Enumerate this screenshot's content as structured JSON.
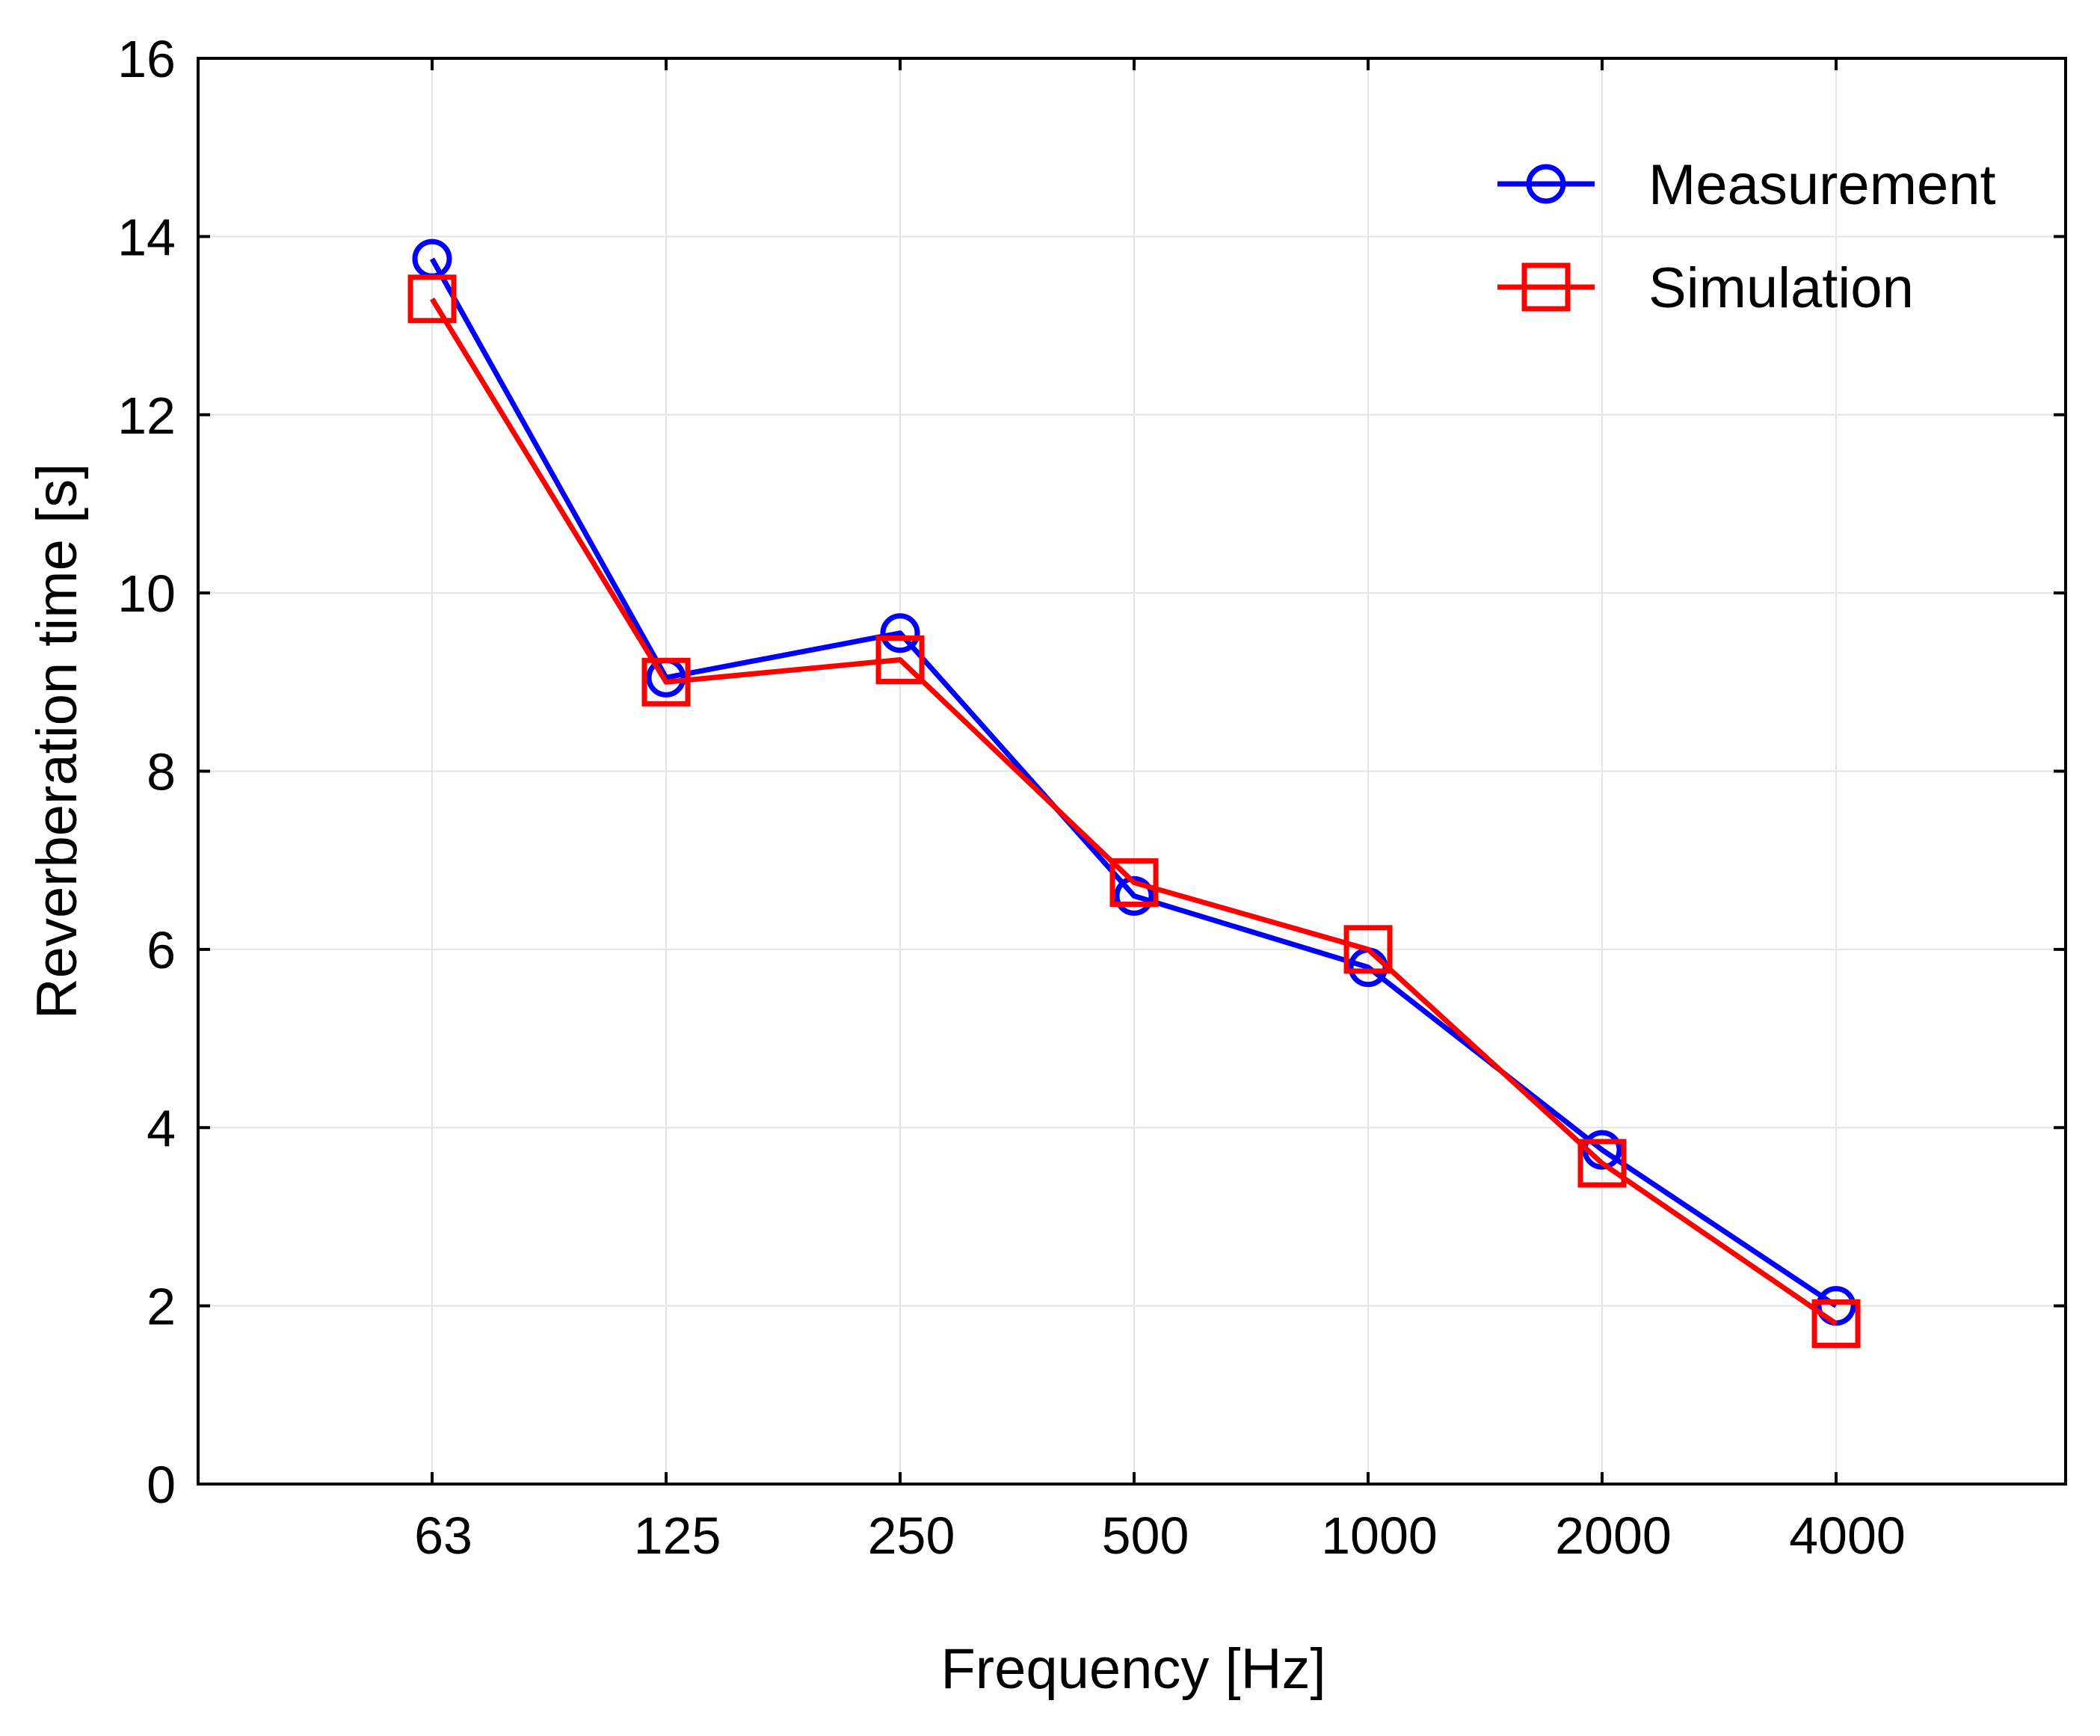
{
  "chart_data": {
    "type": "line",
    "title": "",
    "xlabel": "Frequency [Hz]",
    "ylabel": "Reverberation time [s]",
    "categories": [
      "63",
      "125",
      "250",
      "500",
      "1000",
      "2000",
      "4000"
    ],
    "ylim": [
      0,
      16
    ],
    "yticks": [
      "0",
      "2",
      "4",
      "6",
      "8",
      "10",
      "12",
      "14",
      "16"
    ],
    "grid": true,
    "legend_position": "top-right",
    "series": [
      {
        "name": "Measurement",
        "marker": "circle",
        "color": "#0000ff",
        "values": [
          13.75,
          9.05,
          9.55,
          6.6,
          5.8,
          3.75,
          2.0
        ]
      },
      {
        "name": "Simulation",
        "marker": "square",
        "color": "#ff0000",
        "values": [
          13.3,
          9.0,
          9.25,
          6.75,
          6.0,
          3.6,
          1.8
        ]
      }
    ]
  }
}
